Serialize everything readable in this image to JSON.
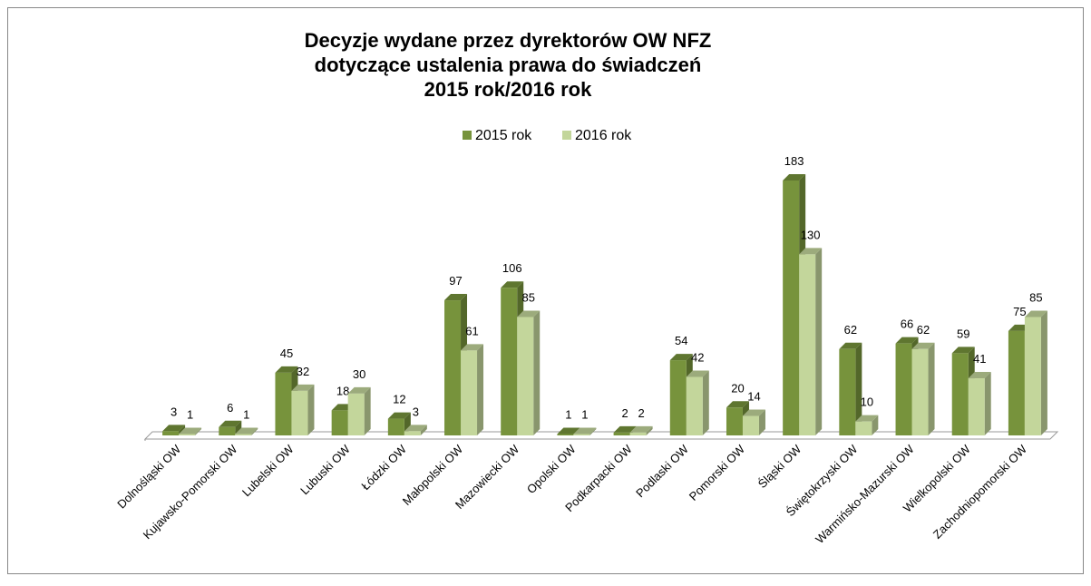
{
  "chart_data": {
    "type": "bar3d",
    "title_lines": [
      "Decyzje wydane przez dyrektorów OW NFZ",
      "dotyczące ustalenia prawa do świadczeń",
      "2015 rok/2016 rok"
    ],
    "categories": [
      "Dolnośląski OW",
      "Kujawsko-Pomorski OW",
      "Lubelski OW",
      "Lubuski OW",
      "Łódzki OW",
      "Małopolski OW",
      "Mazowiecki OW",
      "Opolski OW",
      "Podkarpacki OW",
      "Podlaski OW",
      "Pomorski OW",
      "Śląski OW",
      "Świętokrzyski OW",
      "Warmińsko-Mazurski OW",
      "Wielkopolski OW",
      "Zachodniopomorski OW"
    ],
    "series": [
      {
        "name": "2015 rok",
        "color": "#77933c",
        "values": [
          3,
          6,
          45,
          18,
          12,
          97,
          106,
          1,
          2,
          54,
          20,
          183,
          62,
          66,
          59,
          75
        ]
      },
      {
        "name": "2016 rok",
        "color": "#c3d69b",
        "values": [
          1,
          1,
          32,
          30,
          3,
          61,
          85,
          1,
          2,
          42,
          14,
          130,
          10,
          62,
          41,
          85
        ]
      }
    ],
    "legend": "top"
  }
}
